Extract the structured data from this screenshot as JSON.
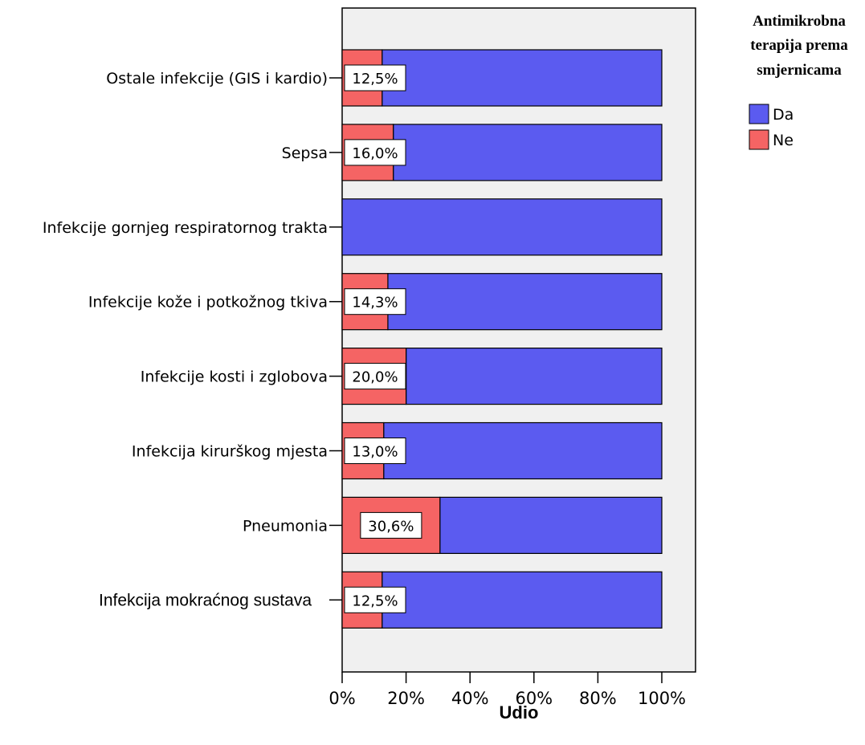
{
  "chart_data": {
    "type": "bar",
    "orientation": "horizontal",
    "stacked": true,
    "categories": [
      "Ostale infekcije (GIS i kardio)",
      "Sepsa",
      "Infekcije gornjeg respiratornog trakta",
      "Infekcije kože i potkožnog tkiva",
      "Infekcije kosti i zglobova",
      "Infekcija kirurškog mjesta",
      "Pneumonia",
      "Infekcija mokraćnog sustava"
    ],
    "series": [
      {
        "name": "Ne",
        "color": "#f56464",
        "values": [
          12.5,
          16.0,
          0,
          14.3,
          20.0,
          13.0,
          30.6,
          12.5
        ]
      },
      {
        "name": "Da",
        "color": "#5b5bf0",
        "values": [
          87.5,
          84.0,
          100,
          85.7,
          80.0,
          87.0,
          69.4,
          87.5
        ]
      }
    ],
    "data_labels": [
      "12,5%",
      "16,0%",
      "",
      "14,3%",
      "20,0%",
      "13,0%",
      "30,6%",
      "12,5%"
    ],
    "xlabel": "Udio",
    "ylabel": "",
    "xlim": [
      0,
      100
    ],
    "x_ticks": [
      0,
      20,
      40,
      60,
      80,
      100
    ],
    "x_tick_labels": [
      "0%",
      "20%",
      "40%",
      "60%",
      "80%",
      "100%"
    ],
    "grid": false,
    "plot_background": "#f0f0f0",
    "legend": {
      "title_lines": [
        "Antimikrobna",
        "terapija prema",
        "smjernicama"
      ],
      "placement": "top-right",
      "entries": [
        {
          "name": "Da",
          "color": "#5b5bf0"
        },
        {
          "name": "Ne",
          "color": "#f56464"
        }
      ]
    }
  }
}
